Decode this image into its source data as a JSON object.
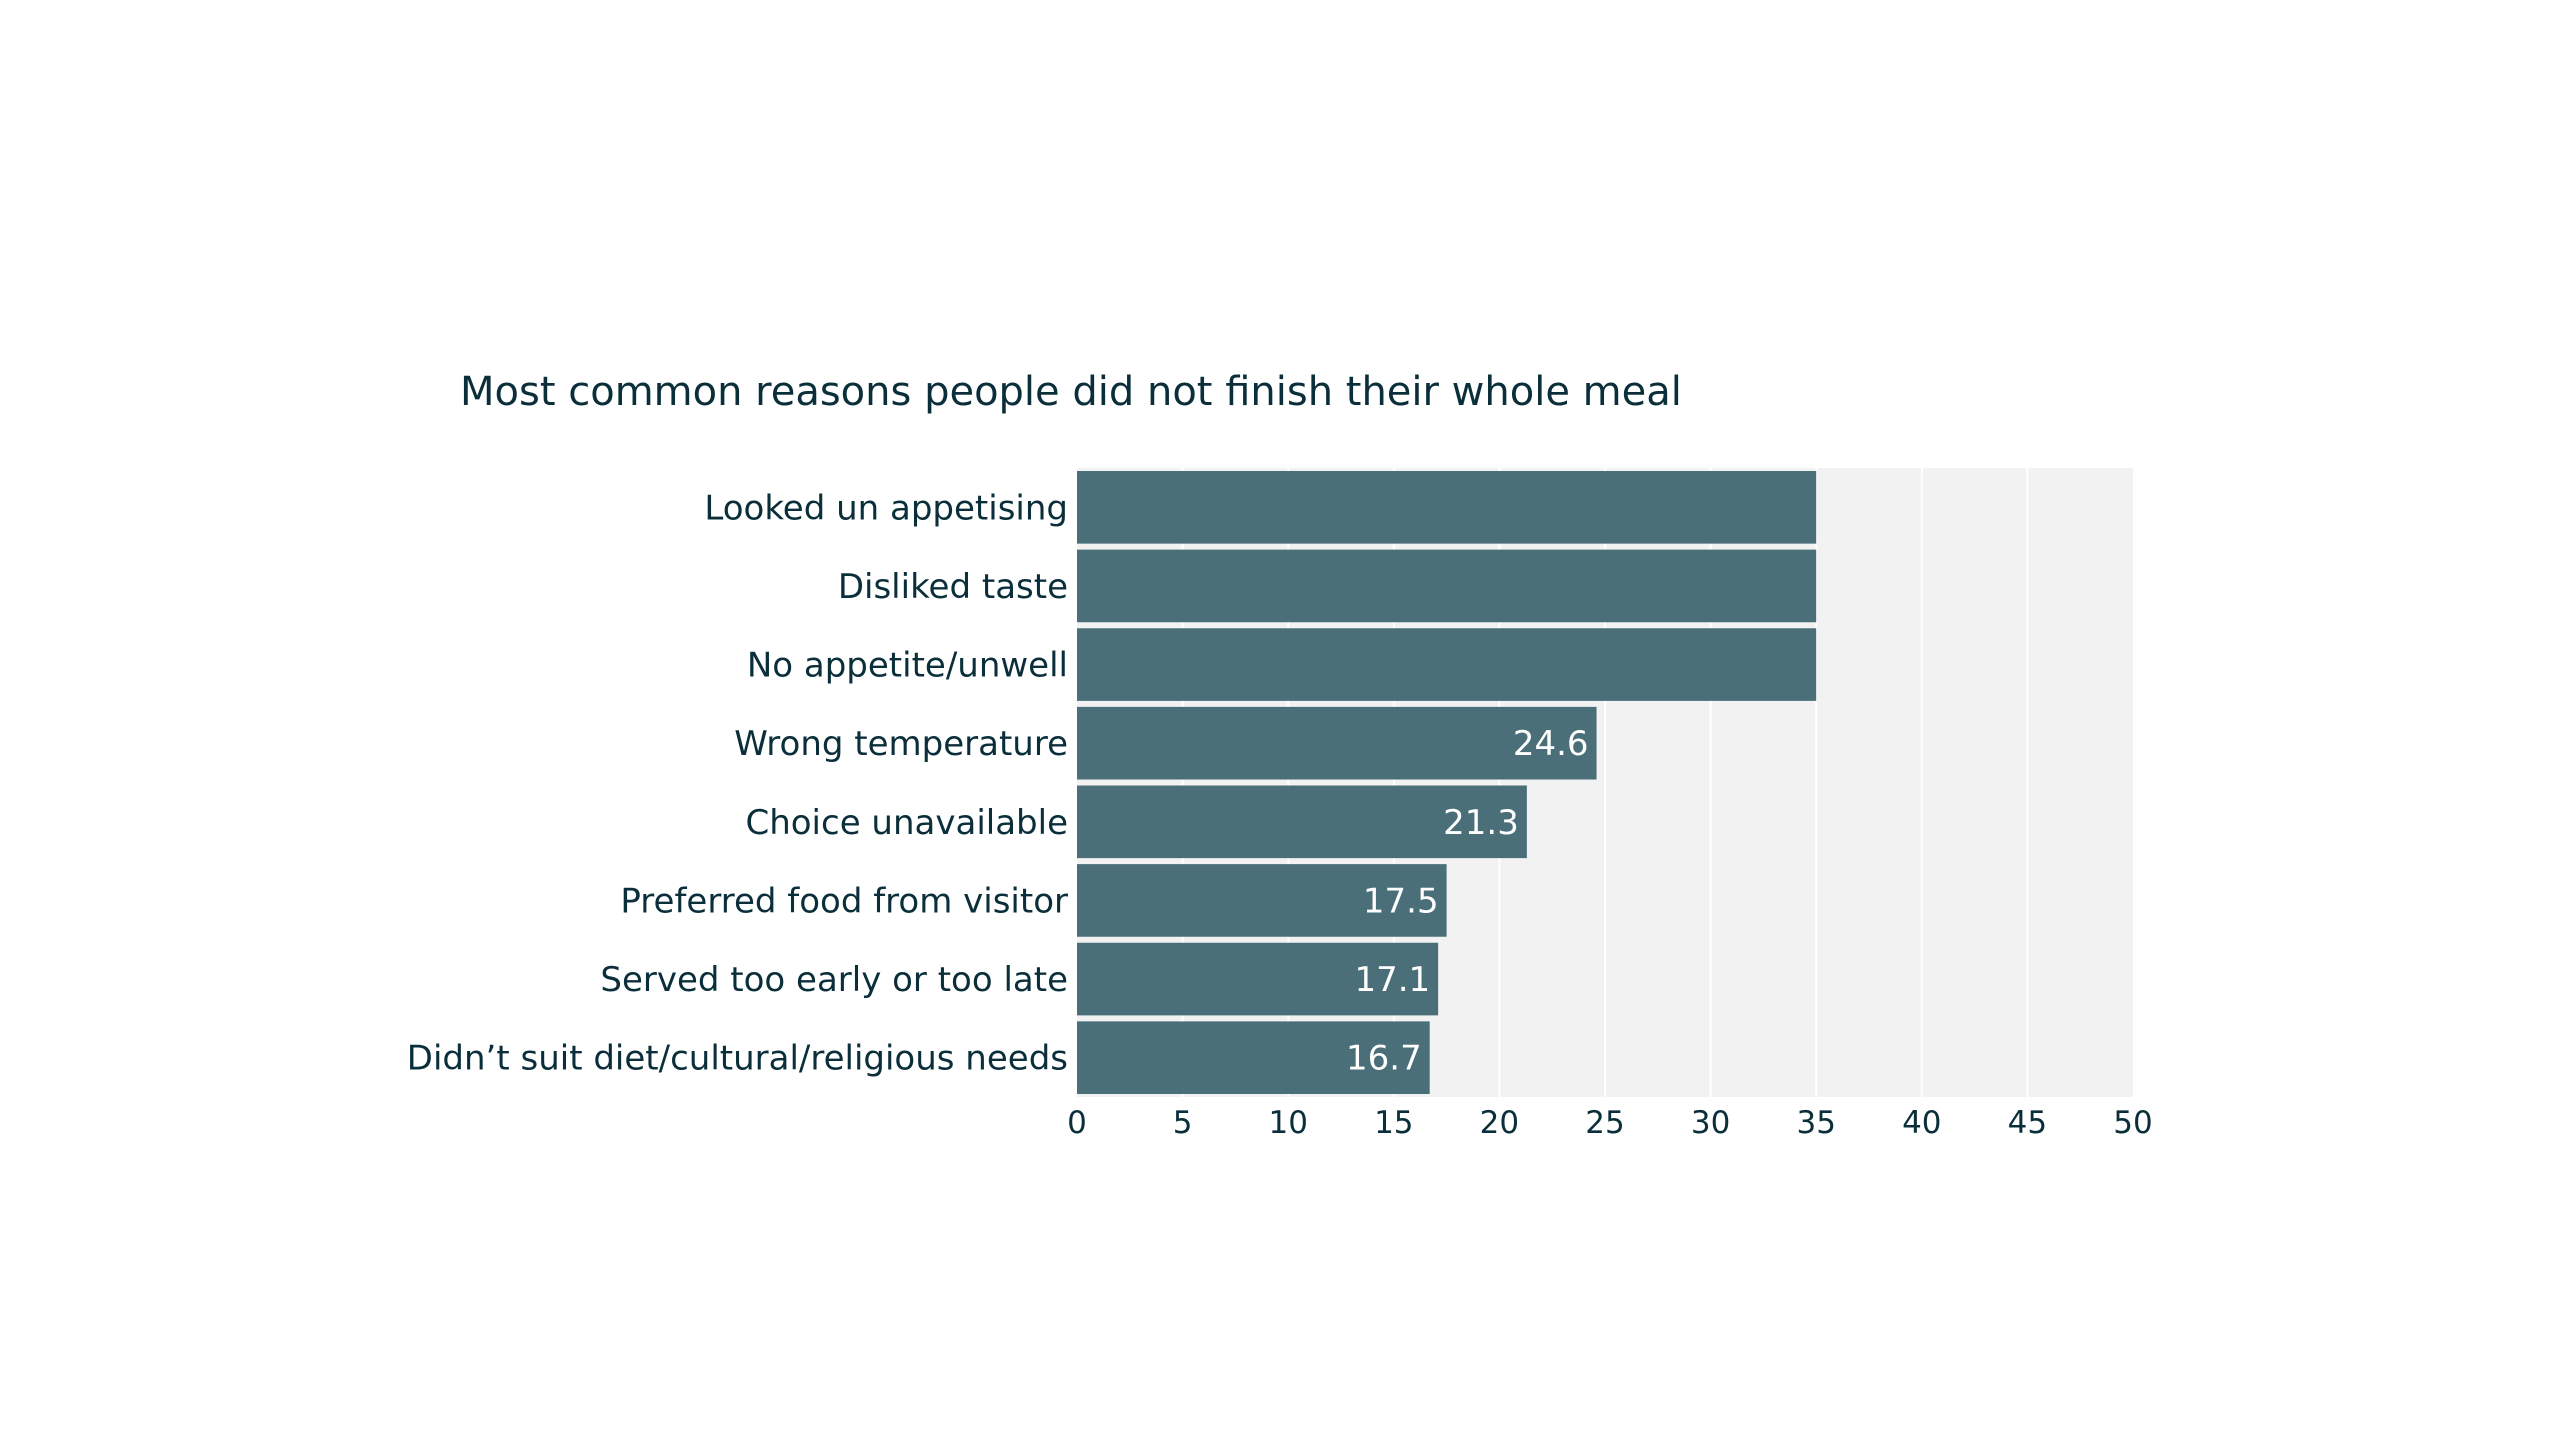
{
  "chart_data": {
    "type": "bar",
    "orientation": "horizontal",
    "title": "Most common reasons people did not finish their whole meal",
    "xlabel": "",
    "ylabel": "",
    "categories": [
      "Looked un appetising",
      "Disliked taste",
      "No appetite/unwell",
      "Wrong temperature",
      "Choice unavailable",
      "Preferred food from visitor",
      "Served too early or too late",
      "Didn’t suit diet/cultural/religious needs"
    ],
    "values": [
      35,
      35,
      35,
      24.6,
      21.3,
      17.5,
      17.1,
      16.7
    ],
    "data_labels": [
      "",
      "",
      "",
      "24.6",
      "21.3",
      "17.5",
      "17.1",
      "16.7"
    ],
    "xlim": [
      0,
      50
    ],
    "xticks": [
      0,
      5,
      10,
      15,
      20,
      25,
      30,
      35,
      40,
      45,
      50
    ],
    "grid": true,
    "legend": "none",
    "colors": {
      "bar": "#4a6f79",
      "plot_background": "#f2f2f2",
      "gridline": "#ffffff",
      "text": "#0b2f3a",
      "data_label": "#ffffff"
    }
  }
}
